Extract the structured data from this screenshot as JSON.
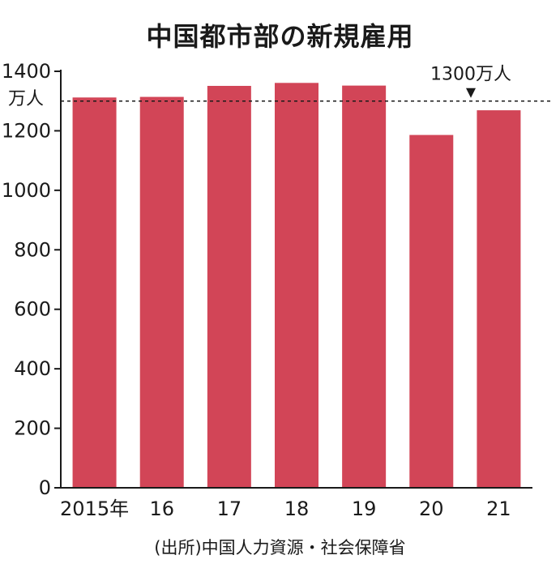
{
  "chart_data": {
    "type": "bar",
    "title": "中国都市部の新規雇用",
    "y_unit": "万人",
    "categories": [
      "2015年",
      "16",
      "17",
      "18",
      "19",
      "20",
      "21"
    ],
    "values": [
      1312,
      1314,
      1351,
      1361,
      1352,
      1186,
      1269
    ],
    "ylim": [
      0,
      1400
    ],
    "yticks": [
      0,
      200,
      400,
      600,
      800,
      1000,
      1200,
      1400
    ],
    "reference_line": {
      "value": 1300,
      "label": "1300万人",
      "style": "dashed"
    },
    "source": "(出所)中国人力資源・社会保障省",
    "bar_color": "#d24557",
    "grid": false
  }
}
